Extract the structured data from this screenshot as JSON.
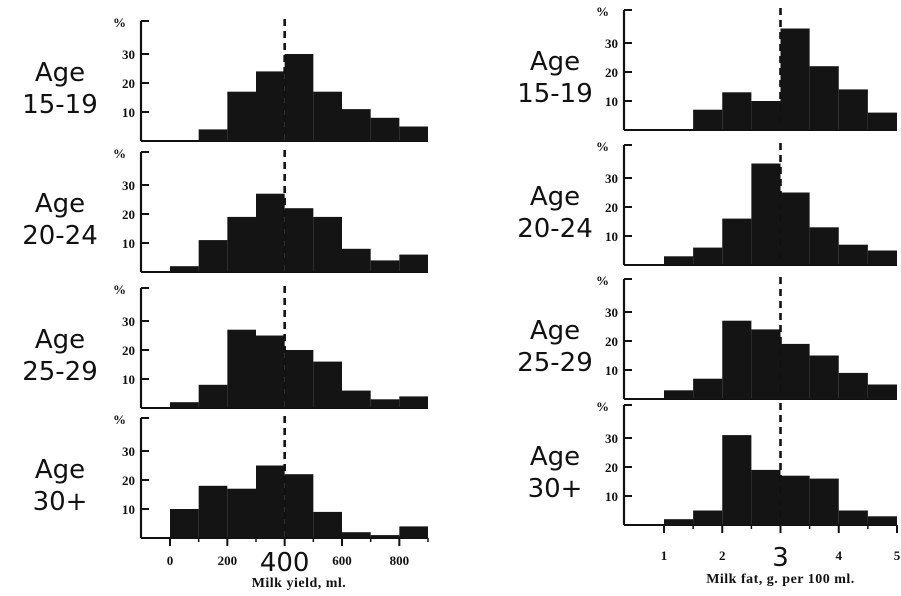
{
  "chart_data": [
    {
      "type": "bar",
      "title": "",
      "panels_label": "Milk yield",
      "xlabel": "Milk yield, ml.",
      "ylabel": "%",
      "bin_width": 100,
      "xlim": [
        -50,
        900
      ],
      "ylim": [
        0,
        35
      ],
      "x_ticks": [
        "0",
        "200",
        "400",
        "600",
        "800"
      ],
      "x_tick_values": [
        0,
        200,
        400,
        600,
        800
      ],
      "y_ticks": [
        "10",
        "20",
        "30"
      ],
      "reference_line": 400,
      "panels": [
        {
          "age": [
            "Age",
            "15-19"
          ],
          "bin_starts": [
            0,
            100,
            200,
            300,
            400,
            500,
            600,
            700,
            800
          ],
          "values": [
            0,
            4,
            17,
            24,
            30,
            17,
            11,
            8,
            5
          ]
        },
        {
          "age": [
            "Age",
            "20-24"
          ],
          "bin_starts": [
            0,
            100,
            200,
            300,
            400,
            500,
            600,
            700,
            800
          ],
          "values": [
            2,
            11,
            19,
            27,
            22,
            19,
            8,
            4,
            6
          ]
        },
        {
          "age": [
            "Age",
            "25-29"
          ],
          "bin_starts": [
            0,
            100,
            200,
            300,
            400,
            500,
            600,
            700,
            800
          ],
          "values": [
            2,
            8,
            27,
            25,
            20,
            16,
            6,
            3,
            4
          ]
        },
        {
          "age": [
            "Age",
            "30+"
          ],
          "bin_starts": [
            0,
            100,
            200,
            300,
            400,
            500,
            600,
            700,
            800
          ],
          "values": [
            10,
            18,
            17,
            25,
            22,
            9,
            2,
            1,
            4
          ]
        }
      ]
    },
    {
      "type": "bar",
      "title": "",
      "panels_label": "Milk fat",
      "xlabel": "Milk fat, g. per 100 ml.",
      "ylabel": "%",
      "bin_width": 0.5,
      "xlim": [
        0.5,
        5
      ],
      "ylim": [
        0,
        35
      ],
      "x_ticks": [
        "1",
        "2",
        "3",
        "4",
        "5"
      ],
      "x_tick_values": [
        1,
        2,
        3,
        4,
        5
      ],
      "y_ticks": [
        "10",
        "20",
        "30"
      ],
      "reference_line": 3,
      "panels": [
        {
          "age": [
            "Age",
            "15-19"
          ],
          "bin_starts": [
            1,
            1.5,
            2,
            2.5,
            3,
            3.5,
            4,
            4.5
          ],
          "values": [
            0,
            7,
            13,
            10,
            35,
            22,
            14,
            6
          ]
        },
        {
          "age": [
            "Age",
            "20-24"
          ],
          "bin_starts": [
            1,
            1.5,
            2,
            2.5,
            3,
            3.5,
            4,
            4.5
          ],
          "values": [
            3,
            6,
            16,
            35,
            25,
            13,
            7,
            5
          ]
        },
        {
          "age": [
            "Age",
            "25-29"
          ],
          "bin_starts": [
            1,
            1.5,
            2,
            2.5,
            3,
            3.5,
            4,
            4.5
          ],
          "values": [
            3,
            7,
            27,
            24,
            19,
            15,
            9,
            5
          ]
        },
        {
          "age": [
            "Age",
            "30+"
          ],
          "bin_starts": [
            1,
            1.5,
            2,
            2.5,
            3,
            3.5,
            4,
            4.5
          ],
          "values": [
            2,
            5,
            31,
            19,
            17,
            16,
            5,
            3
          ]
        }
      ]
    }
  ],
  "colors": {
    "bar": "#141414",
    "axis": "#111111",
    "reference_line": "#111111",
    "background": "#ffffff"
  }
}
